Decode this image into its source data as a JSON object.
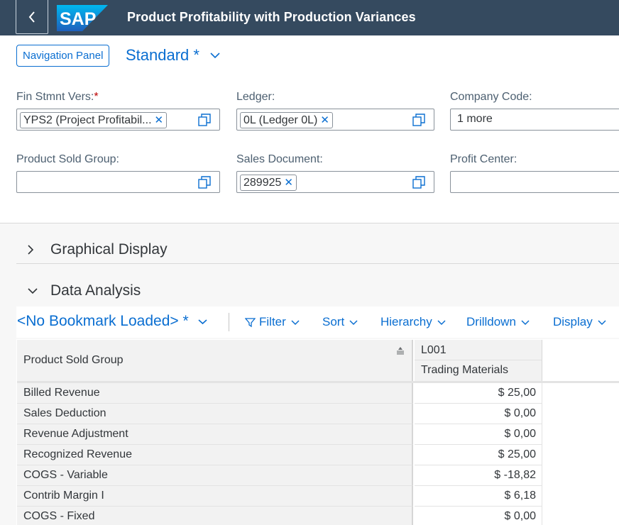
{
  "shell": {
    "title": "Product Profitability with Production Variances",
    "logo_text": "SAP"
  },
  "variant": {
    "nav_panel_label": "Navigation Panel",
    "name": "Standard *"
  },
  "filters": {
    "fin_stmnt_vers": {
      "label": "Fin Stmnt Vers:",
      "required_mark": "*",
      "token": "YPS2 (Project Profitabil..."
    },
    "ledger": {
      "label": "Ledger:",
      "token": "0L (Ledger 0L)"
    },
    "company_code": {
      "label": "Company Code:",
      "value": "1 more"
    },
    "product_sold_group": {
      "label": "Product Sold Group:"
    },
    "sales_document": {
      "label": "Sales Document:",
      "token": "289925"
    },
    "profit_center": {
      "label": "Profit Center:"
    }
  },
  "sections": {
    "graphical": "Graphical Display",
    "analysis": "Data Analysis"
  },
  "toolbar": {
    "bookmark": "<No Bookmark Loaded> *",
    "filter": "Filter",
    "sort": "Sort",
    "hierarchy": "Hierarchy",
    "drilldown": "Drilldown",
    "display": "Display"
  },
  "grid": {
    "row_header": "Product Sold Group",
    "col_code": "L001",
    "col_name": "Trading Materials",
    "rows": [
      {
        "label": "Billed Revenue",
        "value": "$ 25,00"
      },
      {
        "label": "Sales Deduction",
        "value": "$ 0,00"
      },
      {
        "label": "Revenue Adjustment",
        "value": "$ 0,00"
      },
      {
        "label": "Recognized Revenue",
        "value": "$ 25,00"
      },
      {
        "label": "COGS - Variable",
        "value": "$ -18,82"
      },
      {
        "label": "Contrib Margin I",
        "value": "$ 6,18"
      },
      {
        "label": "COGS - Fixed",
        "value": "$ 0,00"
      }
    ]
  },
  "colors": {
    "shell_bg": "#354a5f",
    "accent": "#0a6ed1",
    "required": "#bb0000"
  }
}
